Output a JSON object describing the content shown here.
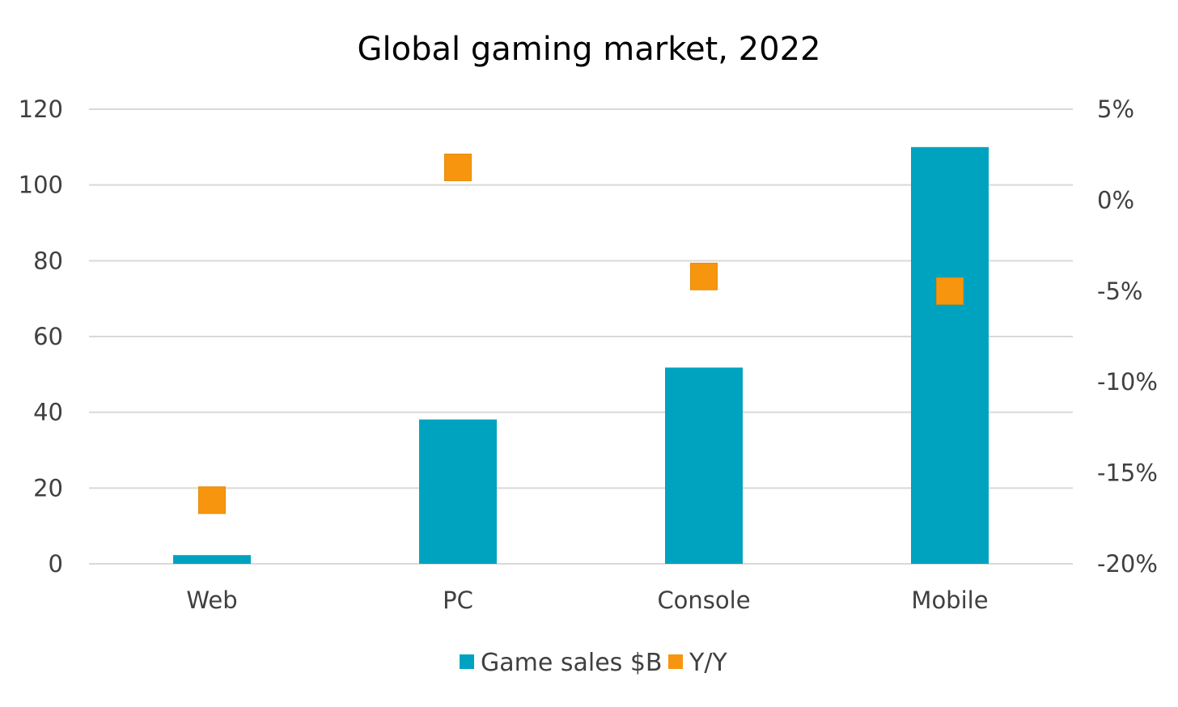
{
  "chart_data": {
    "type": "bar",
    "title": "Global gaming market, 2022",
    "categories": [
      "Web",
      "PC",
      "Console",
      "Mobile"
    ],
    "series": [
      {
        "name": "Game sales $B",
        "kind": "bar",
        "axis": "left",
        "color": "#00A3BF",
        "values": [
          2.3,
          38.1,
          51.8,
          110.0
        ]
      },
      {
        "name": "Y/Y",
        "kind": "marker",
        "axis": "right",
        "color": "#F7960E",
        "values": [
          -16.5,
          1.8,
          -4.2,
          -5.0
        ]
      }
    ],
    "y_left": {
      "range": [
        0,
        120
      ],
      "ticks": [
        0,
        20,
        40,
        60,
        80,
        100,
        120
      ],
      "tick_labels": [
        "0",
        "20",
        "40",
        "60",
        "80",
        "100",
        "120"
      ]
    },
    "y_right": {
      "range": [
        -20,
        5
      ],
      "ticks": [
        -20,
        -15,
        -10,
        -5,
        0,
        5
      ],
      "tick_labels": [
        "-20%",
        "-15%",
        "-10%",
        "-5%",
        "0%",
        "5%"
      ]
    },
    "grid": true,
    "legend_position": "bottom",
    "colors": {
      "grid": "#D9D9D9",
      "tick_text": "#404040",
      "title_text": "#000000"
    }
  }
}
